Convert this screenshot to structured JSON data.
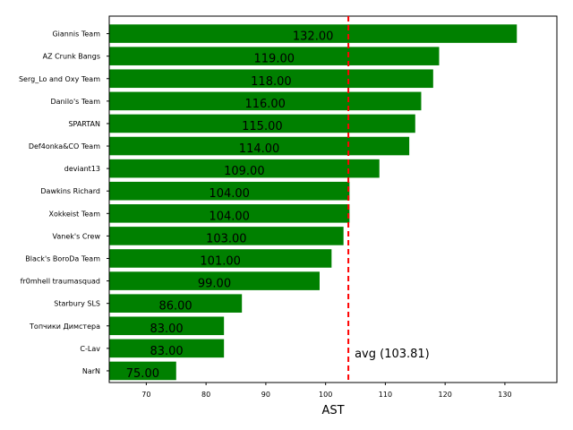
{
  "chart_data": {
    "type": "bar",
    "orientation": "horizontal",
    "categories": [
      "Giannis Team",
      "AZ Crunk Bangs",
      "Serg_Lo and Oxy Team",
      "Danilo's Team",
      "SPARTAN",
      "Def4onka&CO Team",
      "deviant13",
      "Dawkins Richard",
      "Xokkeist Team",
      "Vanek's Crew",
      "Black's BoroDa Team",
      "fr0mhell traumasquad",
      "Starbury SLS",
      "Топчики Димстера",
      "C-Lav",
      "NarN"
    ],
    "values": [
      132,
      119,
      118,
      116,
      115,
      114,
      109,
      104,
      104,
      103,
      101,
      99,
      86,
      83,
      83,
      75
    ],
    "value_labels": [
      "132.00",
      "119.00",
      "118.00",
      "116.00",
      "115.00",
      "114.00",
      "109.00",
      "104.00",
      "104.00",
      "103.00",
      "101.00",
      "99.00",
      "86.00",
      "83.00",
      "83.00",
      "75.00"
    ],
    "title": "",
    "xlabel": "AST",
    "ylabel": "",
    "xlim": [
      63.8,
      138.7
    ],
    "xticks": [
      70,
      80,
      90,
      100,
      110,
      120,
      130
    ],
    "grid": false,
    "bar_color": "#008000",
    "reference_line": {
      "value": 103.81,
      "label": "avg (103.81)",
      "color": "#ff0000",
      "style": "dashed"
    }
  }
}
